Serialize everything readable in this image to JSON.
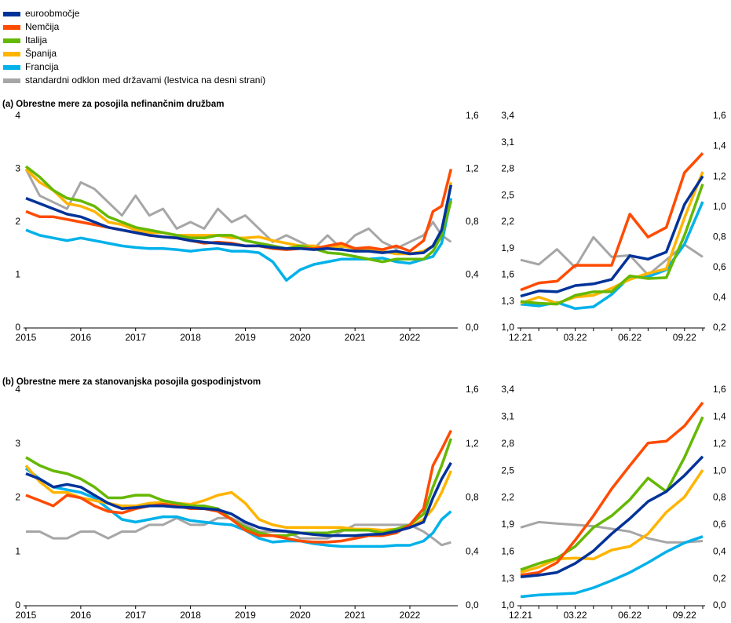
{
  "chart_data": [
    {
      "type": "line",
      "title": "(a) Obrestne mere za posojila nefinančnim družbam",
      "x": [
        2015,
        2015.25,
        2015.5,
        2015.75,
        2016,
        2016.25,
        2016.5,
        2016.75,
        2017,
        2017.25,
        2017.5,
        2017.75,
        2018,
        2018.25,
        2018.5,
        2018.75,
        2019,
        2019.25,
        2019.5,
        2019.75,
        2020,
        2020.25,
        2020.5,
        2020.75,
        2021,
        2021.25,
        2021.5,
        2021.75,
        2022,
        2022.25,
        2022.42,
        2022.58,
        2022.75
      ],
      "xlim": [
        2015,
        2022.83
      ],
      "xticks": [
        2015,
        2016,
        2017,
        2018,
        2019,
        2020,
        2021,
        2022
      ],
      "ylim": [
        0,
        4
      ],
      "yticks": [
        0,
        1,
        2,
        3,
        4
      ],
      "y2lim": [
        0,
        1.6
      ],
      "y2ticks": [
        {
          "value": 0,
          "label": "0,0"
        },
        {
          "value": 0.4,
          "label": "0,4"
        },
        {
          "value": 0.8,
          "label": "0,8"
        },
        {
          "value": 1.2,
          "label": "1,2"
        },
        {
          "value": 1.6,
          "label": "1,6"
        }
      ],
      "series": [
        {
          "name": "standardni odklon med državami (lestvica na desni strani)",
          "color": "#a6a6a6",
          "axis": "y2",
          "values": [
            1.2,
            1.0,
            0.95,
            0.9,
            1.1,
            1.05,
            0.95,
            0.85,
            1.0,
            0.85,
            0.9,
            0.75,
            0.8,
            0.75,
            0.9,
            0.8,
            0.85,
            0.75,
            0.65,
            0.7,
            0.65,
            0.6,
            0.7,
            0.6,
            0.7,
            0.75,
            0.65,
            0.6,
            0.65,
            0.7,
            0.8,
            0.7,
            0.65
          ]
        },
        {
          "name": "Francija",
          "color": "#00b1ea",
          "values": [
            1.85,
            1.75,
            1.7,
            1.65,
            1.7,
            1.65,
            1.6,
            1.55,
            1.52,
            1.5,
            1.5,
            1.48,
            1.45,
            1.48,
            1.5,
            1.45,
            1.45,
            1.42,
            1.25,
            0.9,
            1.1,
            1.2,
            1.25,
            1.3,
            1.3,
            1.3,
            1.32,
            1.25,
            1.22,
            1.3,
            1.35,
            1.6,
            2.45
          ]
        },
        {
          "name": "Španija",
          "color": "#ffb400",
          "values": [
            3.0,
            2.75,
            2.6,
            2.35,
            2.3,
            2.2,
            2.0,
            1.95,
            1.85,
            1.8,
            1.8,
            1.75,
            1.75,
            1.75,
            1.75,
            1.7,
            1.7,
            1.72,
            1.65,
            1.6,
            1.55,
            1.55,
            1.5,
            1.55,
            1.5,
            1.5,
            1.45,
            1.4,
            1.4,
            1.45,
            1.55,
            1.75,
            2.75
          ]
        },
        {
          "name": "Italija",
          "color": "#65b800",
          "values": [
            3.05,
            2.85,
            2.6,
            2.45,
            2.4,
            2.3,
            2.1,
            2.0,
            1.9,
            1.85,
            1.8,
            1.75,
            1.7,
            1.7,
            1.75,
            1.75,
            1.65,
            1.6,
            1.55,
            1.5,
            1.55,
            1.5,
            1.42,
            1.4,
            1.35,
            1.3,
            1.25,
            1.3,
            1.3,
            1.3,
            1.45,
            1.75,
            2.4
          ]
        },
        {
          "name": "Nemčija",
          "color": "#ff4b00",
          "values": [
            2.2,
            2.1,
            2.1,
            2.05,
            2.0,
            1.95,
            1.9,
            1.85,
            1.8,
            1.75,
            1.72,
            1.7,
            1.65,
            1.6,
            1.62,
            1.6,
            1.55,
            1.55,
            1.5,
            1.48,
            1.5,
            1.5,
            1.55,
            1.6,
            1.5,
            1.52,
            1.48,
            1.55,
            1.45,
            1.65,
            2.2,
            2.3,
            3.0
          ]
        },
        {
          "name": "euroobmočje",
          "color": "#003299",
          "values": [
            2.45,
            2.35,
            2.25,
            2.15,
            2.1,
            2.0,
            1.9,
            1.85,
            1.8,
            1.75,
            1.72,
            1.7,
            1.65,
            1.62,
            1.6,
            1.58,
            1.55,
            1.55,
            1.52,
            1.5,
            1.5,
            1.48,
            1.5,
            1.48,
            1.45,
            1.45,
            1.42,
            1.45,
            1.4,
            1.42,
            1.55,
            1.85,
            2.7
          ]
        }
      ]
    },
    {
      "type": "line",
      "categories": [
        "12.21",
        null,
        null,
        "03.22",
        null,
        null,
        "06.22",
        null,
        null,
        "09.22",
        null
      ],
      "ylim": [
        1.0,
        3.4
      ],
      "yticks": [
        {
          "value": 1.0,
          "label": "1,0"
        },
        {
          "value": 1.3,
          "label": "1,3"
        },
        {
          "value": 1.6,
          "label": "1,6"
        },
        {
          "value": 1.9,
          "label": "1,9"
        },
        {
          "value": 2.2,
          "label": "2,2"
        },
        {
          "value": 2.5,
          "label": "2,5"
        },
        {
          "value": 2.8,
          "label": "2,8"
        },
        {
          "value": 3.1,
          "label": "3,1"
        },
        {
          "value": 3.4,
          "label": "3,4"
        }
      ],
      "y2lim": [
        0.2,
        1.6
      ],
      "y2ticks": [
        {
          "value": 0.2,
          "label": "0,2"
        },
        {
          "value": 0.4,
          "label": "0,4"
        },
        {
          "value": 0.6,
          "label": "0,6"
        },
        {
          "value": 0.8,
          "label": "0,8"
        },
        {
          "value": 1.0,
          "label": "1,0"
        },
        {
          "value": 1.2,
          "label": "1,2"
        },
        {
          "value": 1.4,
          "label": "1,4"
        },
        {
          "value": 1.6,
          "label": "1,6"
        }
      ],
      "series": [
        {
          "color": "#a6a6a6",
          "axis": "y2",
          "values": [
            0.65,
            0.62,
            0.72,
            0.6,
            0.8,
            0.67,
            0.68,
            0.55,
            0.65,
            0.75,
            0.67
          ]
        },
        {
          "color": "#00b1ea",
          "values": [
            1.27,
            1.25,
            1.29,
            1.22,
            1.24,
            1.38,
            1.58,
            1.58,
            1.66,
            1.95,
            2.43
          ]
        },
        {
          "color": "#ffb400",
          "values": [
            1.28,
            1.35,
            1.28,
            1.35,
            1.37,
            1.45,
            1.55,
            1.62,
            1.67,
            2.25,
            2.77
          ]
        },
        {
          "color": "#65b800",
          "values": [
            1.3,
            1.28,
            1.27,
            1.37,
            1.41,
            1.41,
            1.59,
            1.56,
            1.57,
            2.05,
            2.63
          ]
        },
        {
          "color": "#ff4b00",
          "values": [
            1.43,
            1.51,
            1.53,
            1.71,
            1.71,
            1.71,
            2.29,
            2.03,
            2.14,
            2.76,
            2.98
          ]
        },
        {
          "color": "#003299",
          "values": [
            1.36,
            1.42,
            1.41,
            1.48,
            1.5,
            1.55,
            1.82,
            1.78,
            1.86,
            2.4,
            2.72
          ]
        }
      ]
    },
    {
      "type": "line",
      "title": "(b) Obrestne mere za stanovanjska posojila gospodinjstvom",
      "x": [
        2015,
        2015.25,
        2015.5,
        2015.75,
        2016,
        2016.25,
        2016.5,
        2016.75,
        2017,
        2017.25,
        2017.5,
        2017.75,
        2018,
        2018.25,
        2018.5,
        2018.75,
        2019,
        2019.25,
        2019.5,
        2019.75,
        2020,
        2020.25,
        2020.5,
        2020.75,
        2021,
        2021.25,
        2021.5,
        2021.75,
        2022,
        2022.25,
        2022.42,
        2022.58,
        2022.75
      ],
      "xlim": [
        2015,
        2022.83
      ],
      "xticks": [
        2015,
        2016,
        2017,
        2018,
        2019,
        2020,
        2021,
        2022
      ],
      "ylim": [
        0,
        4
      ],
      "yticks": [
        0,
        1,
        2,
        3,
        4
      ],
      "y2lim": [
        0,
        1.6
      ],
      "y2ticks": [
        {
          "value": 0,
          "label": "0,0"
        },
        {
          "value": 0.4,
          "label": "0,4"
        },
        {
          "value": 0.8,
          "label": "0,8"
        },
        {
          "value": 1.2,
          "label": "1,2"
        },
        {
          "value": 1.6,
          "label": "1,6"
        }
      ],
      "series": [
        {
          "color": "#a6a6a6",
          "axis": "y2",
          "values": [
            0.55,
            0.55,
            0.5,
            0.5,
            0.55,
            0.55,
            0.5,
            0.55,
            0.55,
            0.6,
            0.6,
            0.65,
            0.6,
            0.6,
            0.65,
            0.65,
            0.6,
            0.55,
            0.55,
            0.55,
            0.5,
            0.5,
            0.5,
            0.55,
            0.6,
            0.6,
            0.6,
            0.6,
            0.6,
            0.55,
            0.5,
            0.45,
            0.47
          ]
        },
        {
          "color": "#00b1ea",
          "values": [
            2.55,
            2.35,
            2.2,
            2.15,
            2.1,
            2.0,
            1.8,
            1.6,
            1.55,
            1.6,
            1.65,
            1.65,
            1.58,
            1.55,
            1.52,
            1.5,
            1.4,
            1.25,
            1.18,
            1.2,
            1.2,
            1.15,
            1.12,
            1.1,
            1.1,
            1.1,
            1.1,
            1.12,
            1.12,
            1.2,
            1.35,
            1.6,
            1.75
          ]
        },
        {
          "color": "#ffb400",
          "values": [
            2.6,
            2.3,
            2.1,
            2.1,
            2.0,
            1.95,
            1.9,
            1.85,
            1.85,
            1.9,
            1.92,
            1.9,
            1.88,
            1.95,
            2.05,
            2.1,
            1.9,
            1.6,
            1.5,
            1.45,
            1.45,
            1.45,
            1.45,
            1.45,
            1.42,
            1.42,
            1.4,
            1.42,
            1.45,
            1.6,
            1.8,
            2.1,
            2.5
          ]
        },
        {
          "color": "#65b800",
          "values": [
            2.75,
            2.6,
            2.5,
            2.45,
            2.35,
            2.2,
            2.0,
            2.0,
            2.05,
            2.05,
            1.95,
            1.9,
            1.85,
            1.85,
            1.8,
            1.6,
            1.45,
            1.35,
            1.3,
            1.3,
            1.35,
            1.35,
            1.35,
            1.4,
            1.4,
            1.4,
            1.35,
            1.42,
            1.5,
            1.7,
            2.2,
            2.6,
            3.1
          ]
        },
        {
          "color": "#ff4b00",
          "values": [
            2.05,
            1.95,
            1.85,
            2.05,
            2.0,
            1.85,
            1.75,
            1.72,
            1.8,
            1.85,
            1.88,
            1.85,
            1.8,
            1.8,
            1.75,
            1.6,
            1.4,
            1.3,
            1.3,
            1.25,
            1.2,
            1.18,
            1.18,
            1.2,
            1.25,
            1.3,
            1.3,
            1.35,
            1.5,
            1.8,
            2.6,
            2.9,
            3.25
          ]
        },
        {
          "color": "#003299",
          "values": [
            2.45,
            2.35,
            2.2,
            2.25,
            2.2,
            2.05,
            1.9,
            1.8,
            1.82,
            1.85,
            1.85,
            1.83,
            1.82,
            1.8,
            1.78,
            1.7,
            1.55,
            1.45,
            1.4,
            1.38,
            1.35,
            1.32,
            1.3,
            1.3,
            1.3,
            1.32,
            1.33,
            1.38,
            1.45,
            1.55,
            2.0,
            2.35,
            2.65
          ]
        }
      ]
    },
    {
      "type": "line",
      "categories": [
        "12.21",
        null,
        null,
        "03.22",
        null,
        null,
        "06.22",
        null,
        null,
        "09.22",
        null
      ],
      "ylim": [
        1.0,
        3.4
      ],
      "yticks": [
        {
          "value": 1.0,
          "label": "1,0"
        },
        {
          "value": 1.3,
          "label": "1,3"
        },
        {
          "value": 1.6,
          "label": "1,6"
        },
        {
          "value": 1.9,
          "label": "1,9"
        },
        {
          "value": 2.2,
          "label": "2,2"
        },
        {
          "value": 2.5,
          "label": "2,5"
        },
        {
          "value": 2.8,
          "label": "2,8"
        },
        {
          "value": 3.1,
          "label": "3,1"
        },
        {
          "value": 3.4,
          "label": "3,4"
        }
      ],
      "y2lim": [
        0,
        1.6
      ],
      "y2ticks": [
        {
          "value": 0,
          "label": "0,0"
        },
        {
          "value": 0.2,
          "label": "0,2"
        },
        {
          "value": 0.4,
          "label": "0,4"
        },
        {
          "value": 0.6,
          "label": "0,6"
        },
        {
          "value": 0.8,
          "label": "0,8"
        },
        {
          "value": 1.0,
          "label": "1,0"
        },
        {
          "value": 1.2,
          "label": "1,2"
        },
        {
          "value": 1.4,
          "label": "1,4"
        },
        {
          "value": 1.6,
          "label": "1,6"
        }
      ],
      "series": [
        {
          "color": "#a6a6a6",
          "axis": "y2",
          "values": [
            0.58,
            0.62,
            0.61,
            0.6,
            0.59,
            0.57,
            0.55,
            0.5,
            0.47,
            0.47,
            0.48
          ]
        },
        {
          "color": "#00b1ea",
          "values": [
            1.1,
            1.12,
            1.13,
            1.14,
            1.2,
            1.28,
            1.37,
            1.48,
            1.6,
            1.7,
            1.77
          ]
        },
        {
          "color": "#ffb400",
          "values": [
            1.37,
            1.43,
            1.52,
            1.53,
            1.52,
            1.62,
            1.66,
            1.8,
            2.04,
            2.21,
            2.51
          ]
        },
        {
          "color": "#65b800",
          "values": [
            1.4,
            1.47,
            1.53,
            1.66,
            1.87,
            2.0,
            2.18,
            2.42,
            2.27,
            2.65,
            3.1
          ]
        },
        {
          "color": "#ff4b00",
          "values": [
            1.34,
            1.37,
            1.48,
            1.73,
            2.0,
            2.3,
            2.56,
            2.81,
            2.83,
            3.0,
            3.26
          ]
        },
        {
          "color": "#003299",
          "values": [
            1.32,
            1.34,
            1.37,
            1.47,
            1.61,
            1.8,
            1.97,
            2.16,
            2.27,
            2.45,
            2.66
          ]
        }
      ]
    }
  ]
}
